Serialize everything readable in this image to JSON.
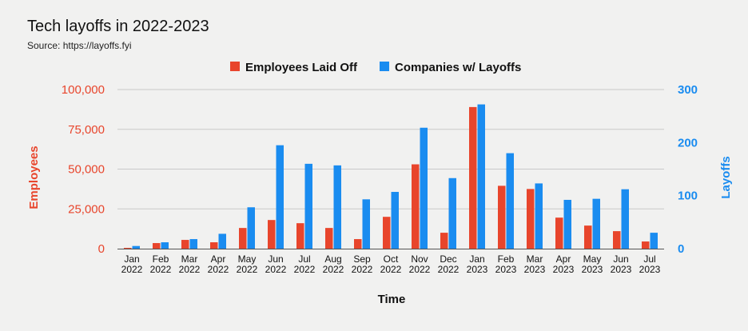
{
  "chart_data": {
    "type": "bar",
    "title": "Tech layoffs in 2022-2023",
    "subtitle": "Source: https://layoffs.fyi",
    "xlabel": "Time",
    "ylabel_left": "Employees",
    "ylabel_right": "Layoffs",
    "ylim_left": [
      0,
      100000
    ],
    "ylim_right": [
      0,
      300
    ],
    "yticks_left": [
      "0",
      "25,000",
      "50,000",
      "75,000",
      "100,000"
    ],
    "yticks_right": [
      "0",
      "100",
      "200",
      "300"
    ],
    "legend_position": "top-center",
    "grid": true,
    "categories": [
      [
        "Jan",
        "2022"
      ],
      [
        "Feb",
        "2022"
      ],
      [
        "Mar",
        "2022"
      ],
      [
        "Apr",
        "2022"
      ],
      [
        "May",
        "2022"
      ],
      [
        "Jun",
        "2022"
      ],
      [
        "Jul",
        "2022"
      ],
      [
        "Aug",
        "2022"
      ],
      [
        "Sep",
        "2022"
      ],
      [
        "Oct",
        "2022"
      ],
      [
        "Nov",
        "2022"
      ],
      [
        "Dec",
        "2022"
      ],
      [
        "Jan",
        "2023"
      ],
      [
        "Feb",
        "2023"
      ],
      [
        "Mar",
        "2023"
      ],
      [
        "Apr",
        "2023"
      ],
      [
        "May",
        "2023"
      ],
      [
        "Jun",
        "2023"
      ],
      [
        "Jul",
        "2023"
      ]
    ],
    "series": [
      {
        "name": "Employees Laid Off",
        "axis": "left",
        "color": "#e8452c",
        "values": [
          500,
          3500,
          5500,
          4000,
          13000,
          18000,
          16000,
          13000,
          6000,
          20000,
          53000,
          10000,
          89000,
          39500,
          37500,
          19500,
          14500,
          11000,
          4500
        ]
      },
      {
        "name": "Companies w/ Layoffs",
        "axis": "right",
        "color": "#1a8cf0",
        "values": [
          5,
          12,
          18,
          28,
          78,
          195,
          160,
          157,
          93,
          107,
          228,
          133,
          272,
          180,
          123,
          92,
          94,
          112,
          30
        ]
      }
    ]
  }
}
